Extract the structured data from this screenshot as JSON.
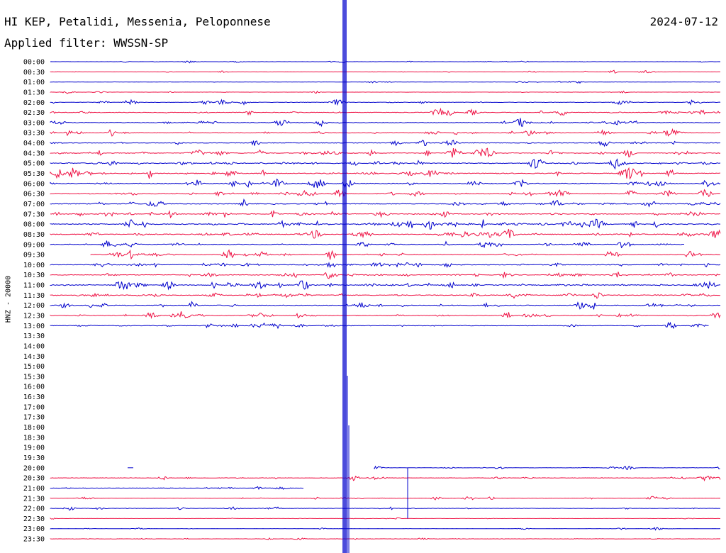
{
  "header": {
    "station": "HI KEP, Petalidi, Messenia, Peloponnese",
    "date": "2024-07-12",
    "filter": "Applied filter: WWSSN-SP"
  },
  "colors": {
    "trace_a": "#0000cc",
    "trace_b": "#ee1144",
    "background": "#ffffff"
  },
  "chart_data": {
    "type": "line",
    "title": "HI KEP, Petalidi, Messenia, Peloponnese",
    "date": "2024-07-12",
    "filter": "WWSSN-SP",
    "ylabel": "HNZ - 20000",
    "xlabel": "",
    "row_interval_minutes": 30,
    "row_labels": [
      "00:00",
      "00:30",
      "01:00",
      "01:30",
      "02:00",
      "02:30",
      "03:00",
      "03:30",
      "04:00",
      "04:30",
      "05:00",
      "05:30",
      "06:00",
      "06:30",
      "07:00",
      "07:30",
      "08:00",
      "08:30",
      "09:00",
      "09:30",
      "10:00",
      "10:30",
      "11:00",
      "11:30",
      "12:00",
      "12:30",
      "13:00",
      "13:30",
      "14:00",
      "14:30",
      "15:00",
      "15:30",
      "16:00",
      "16:30",
      "17:00",
      "17:30",
      "18:00",
      "18:30",
      "19:00",
      "19:30",
      "20:00",
      "20:30",
      "21:00",
      "21:30",
      "22:00",
      "22:30",
      "23:00",
      "23:30"
    ],
    "series": [
      {
        "color": "#0000cc",
        "rows": [
          0,
          2,
          4,
          6,
          8,
          10,
          12,
          14,
          16,
          18,
          20,
          22,
          24,
          26,
          40,
          42,
          44,
          46
        ]
      },
      {
        "color": "#ee1144",
        "rows": [
          1,
          3,
          5,
          7,
          9,
          11,
          13,
          15,
          17,
          19,
          21,
          23,
          25,
          41,
          43,
          45,
          47
        ]
      }
    ],
    "rows_with_data": [
      0,
      1,
      2,
      3,
      4,
      5,
      6,
      7,
      8,
      9,
      10,
      11,
      12,
      13,
      14,
      15,
      16,
      17,
      18,
      19,
      20,
      21,
      22,
      23,
      24,
      25,
      26,
      40,
      41,
      42,
      43,
      44,
      45,
      46,
      47
    ],
    "row_activity": [
      0.2,
      0.25,
      0.2,
      0.2,
      0.45,
      0.6,
      0.6,
      0.65,
      0.6,
      0.7,
      0.8,
      0.85,
      0.8,
      0.85,
      0.8,
      0.75,
      0.9,
      0.9,
      0.7,
      0.7,
      0.7,
      0.7,
      0.85,
      0.8,
      0.75,
      0.65,
      0.6,
      0,
      0,
      0,
      0,
      0,
      0,
      0,
      0,
      0,
      0,
      0,
      0,
      0,
      0.3,
      0.4,
      0.3,
      0.35,
      0.35,
      0.2,
      0.2,
      0.25
    ],
    "event_time": "00:30 (row), large transient offset ~ 0.5 of row span"
  }
}
